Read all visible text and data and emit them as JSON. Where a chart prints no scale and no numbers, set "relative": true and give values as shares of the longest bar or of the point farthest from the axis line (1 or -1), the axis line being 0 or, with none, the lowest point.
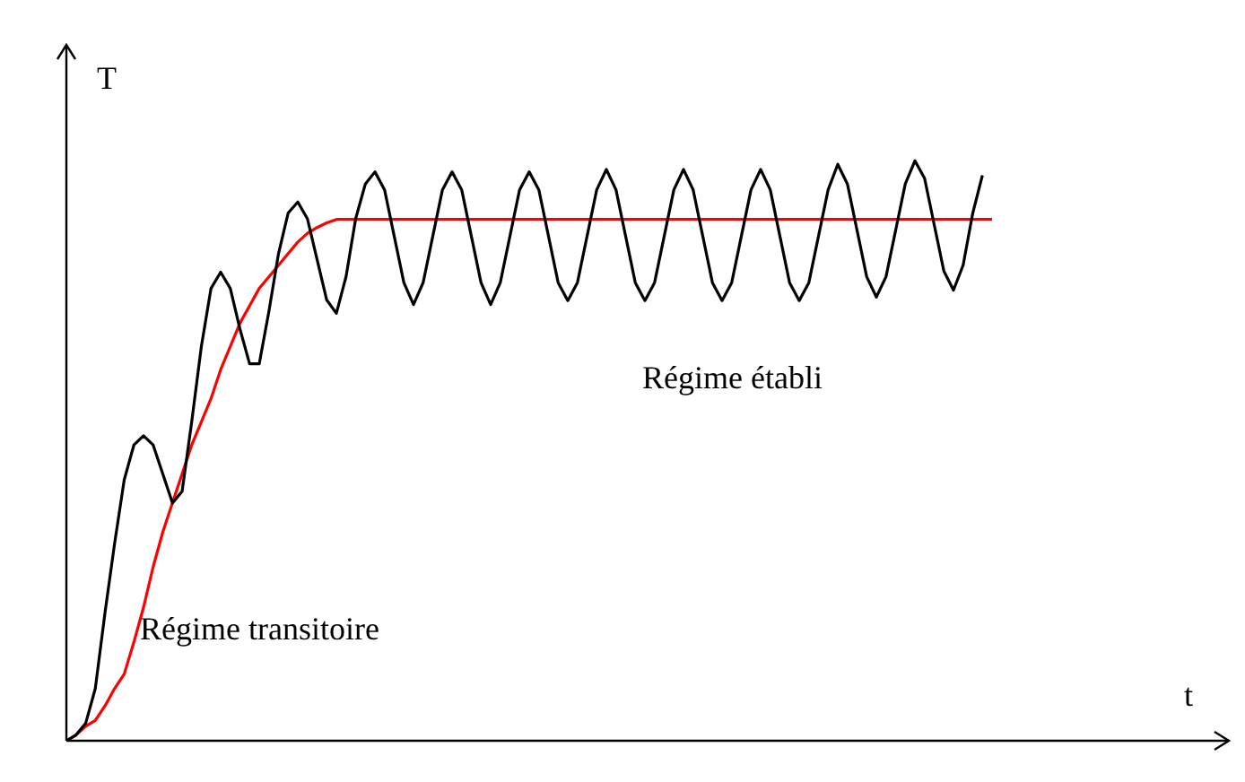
{
  "chart_data": {
    "type": "line",
    "relative": true,
    "marker": "none",
    "legend": false,
    "annotations": [
      "T",
      "Régime établi",
      "Régime transitoire",
      "t"
    ],
    "categories": [
      null,
      null,
      null,
      null,
      null,
      null,
      null,
      null,
      null,
      null,
      null,
      null,
      null,
      null,
      null,
      null,
      null,
      null,
      null,
      null,
      null,
      null,
      null,
      null,
      null,
      null,
      null,
      null,
      null,
      null,
      null,
      null,
      null,
      null,
      null,
      null,
      null,
      null,
      null,
      null,
      null,
      null,
      null,
      null,
      null,
      null,
      null,
      null,
      null,
      null,
      null,
      null,
      null,
      null,
      null,
      null,
      null,
      null,
      null,
      null,
      null,
      null,
      null,
      null,
      null,
      null,
      null,
      null,
      null,
      null,
      null,
      null,
      null,
      null,
      null,
      null,
      null,
      null,
      null,
      null,
      null,
      null,
      null,
      null,
      null,
      null,
      null,
      null,
      null,
      null,
      null,
      null,
      null,
      null,
      null,
      null,
      null
    ],
    "series": [
      {
        "color": "#000000",
        "values": [
          0,
          0.01,
          0.03,
          0.09,
          0.22,
          0.34,
          0.45,
          0.51,
          0.526,
          0.51,
          0.46,
          0.41,
          0.43,
          0.55,
          0.68,
          0.78,
          0.808,
          0.78,
          0.71,
          0.65,
          0.65,
          0.74,
          0.84,
          0.91,
          0.929,
          0.9,
          0.83,
          0.76,
          0.737,
          0.8,
          0.9,
          0.96,
          0.981,
          0.95,
          0.87,
          0.79,
          0.752,
          0.79,
          0.87,
          0.95,
          0.981,
          0.95,
          0.87,
          0.79,
          0.752,
          0.79,
          0.87,
          0.95,
          0.981,
          0.95,
          0.87,
          0.79,
          0.759,
          0.79,
          0.87,
          0.95,
          0.985,
          0.95,
          0.87,
          0.79,
          0.759,
          0.79,
          0.87,
          0.95,
          0.985,
          0.95,
          0.87,
          0.79,
          0.759,
          0.79,
          0.87,
          0.95,
          0.985,
          0.95,
          0.87,
          0.79,
          0.759,
          0.79,
          0.87,
          0.95,
          0.994,
          0.96,
          0.88,
          0.8,
          0.765,
          0.8,
          0.88,
          0.96,
          1,
          0.97,
          0.89,
          0.81,
          0.777,
          0.82,
          0.91,
          0.975,
          null
        ]
      },
      {
        "color": "#ff0000",
        "values": [
          0,
          0.01,
          0.025,
          0.035,
          0.06,
          0.09,
          0.115,
          0.17,
          0.23,
          0.3,
          0.36,
          0.41,
          0.46,
          0.51,
          0.55,
          0.59,
          0.64,
          0.68,
          0.72,
          0.75,
          0.78,
          0.8,
          0.82,
          0.84,
          0.86,
          0.875,
          0.885,
          0.893,
          0.899,
          0.899,
          0.899,
          0.899,
          0.899,
          0.899,
          0.899,
          0.899,
          0.899,
          0.899,
          0.899,
          0.899,
          0.899,
          0.899,
          0.899,
          0.899,
          0.899,
          0.899,
          0.899,
          0.899,
          0.899,
          0.899,
          0.899,
          0.899,
          0.899,
          0.899,
          0.899,
          0.899,
          0.899,
          0.899,
          0.899,
          0.899,
          0.899,
          0.899,
          0.899,
          0.899,
          0.899,
          0.899,
          0.899,
          0.899,
          0.899,
          0.899,
          0.899,
          0.899,
          0.899,
          0.899,
          0.899,
          0.899,
          0.899,
          0.899,
          0.899,
          0.899,
          0.899,
          0.899,
          0.899,
          0.899,
          0.899,
          0.899,
          0.899,
          0.899,
          0.899,
          0.899,
          0.899,
          0.899,
          0.899,
          0.899,
          0.899,
          0.899,
          0.899
        ]
      }
    ]
  }
}
